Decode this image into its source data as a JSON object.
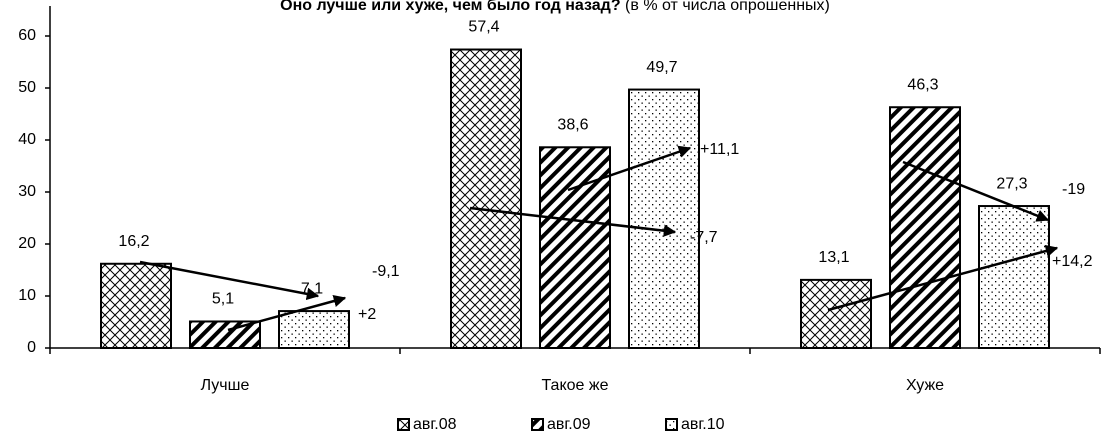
{
  "chart_data": {
    "type": "bar",
    "title": "Оно лучше или хуже, чем было год назад?",
    "subtitle": "(в % от числа опрошенных)",
    "categories": [
      "Лучше",
      "Такое же",
      "Хуже"
    ],
    "series": [
      {
        "name": "авг.08",
        "pattern": "crosshatch",
        "color": "#000000",
        "values": [
          16.2,
          57.4,
          13.1
        ],
        "value_labels": [
          "16,2",
          "57,4",
          "13,1"
        ]
      },
      {
        "name": "авг.09",
        "pattern": "stripes",
        "color": "#000000",
        "values": [
          5.1,
          38.6,
          46.3
        ],
        "value_labels": [
          "5,1",
          "38,6",
          "46,3"
        ]
      },
      {
        "name": "авг.10",
        "pattern": "dots",
        "color": "#000000",
        "values": [
          7.1,
          49.7,
          27.3
        ],
        "value_labels": [
          "7,1",
          "49,7",
          "27,3"
        ]
      }
    ],
    "annotations": [
      "-9,1",
      "+2",
      "+11,1",
      "-7,7",
      "-19",
      "+14,2"
    ],
    "ylim": [
      0,
      60
    ],
    "yticks": [
      0,
      10,
      20,
      30,
      40,
      50,
      60
    ],
    "grid": false,
    "legend": "bottom"
  }
}
